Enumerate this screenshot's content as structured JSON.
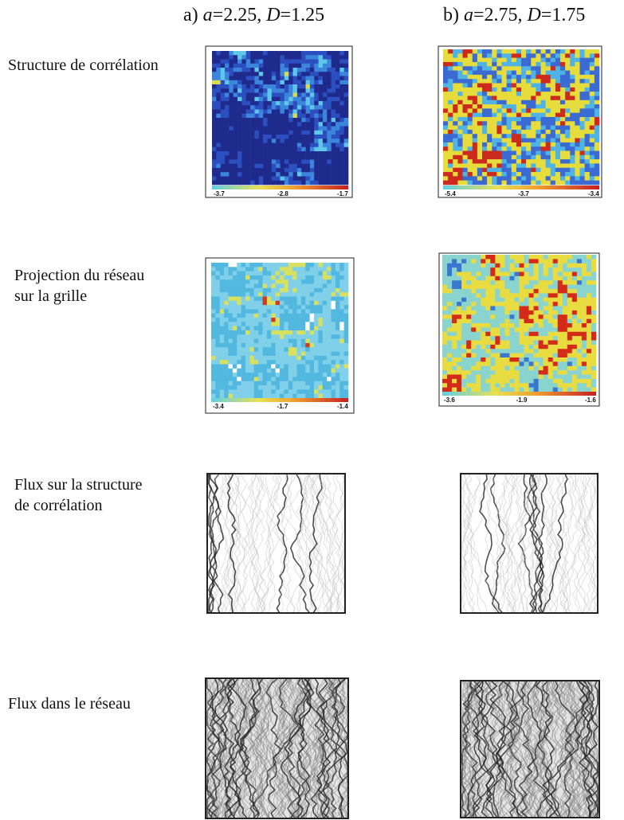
{
  "header": {
    "columns": [
      [
        "a) ",
        "a",
        "=2.25, ",
        "D",
        "=1.25"
      ],
      [
        "b) ",
        "a",
        "=2.75, ",
        "D",
        "=1.75"
      ]
    ]
  },
  "rows": [
    {
      "label": [
        "Structure de corrélation"
      ],
      "colorbars": [
        [
          "-3.7",
          "-2.8",
          "-1.7"
        ],
        [
          "-5.4",
          "-3.7",
          "-3.4"
        ]
      ]
    },
    {
      "label": [
        "Projection du réseau",
        "sur la grille"
      ],
      "colorbars": [
        [
          "-3.4",
          "-1.7",
          "-1.4"
        ],
        [
          "-3.6",
          "-1.9",
          "-1.6"
        ]
      ]
    },
    {
      "label": [
        "Flux sur la structure",
        "de corrélation"
      ]
    },
    {
      "label": [
        "Flux dans le réseau"
      ]
    }
  ]
}
